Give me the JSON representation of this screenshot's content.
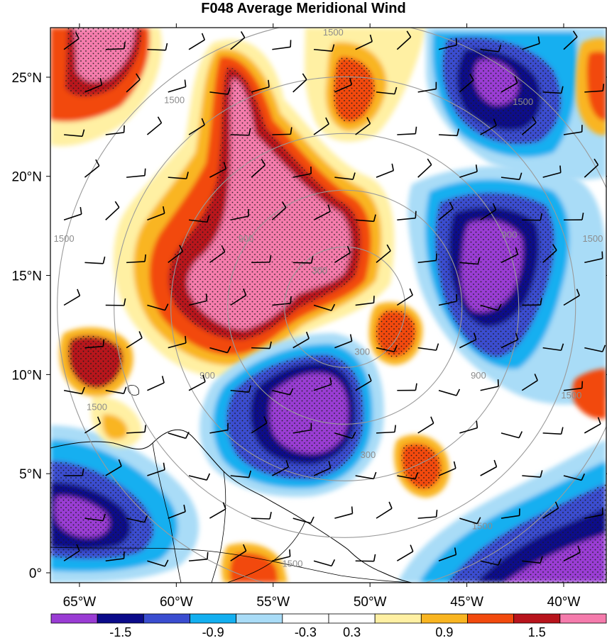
{
  "title": "F048 Average Meridional Wind",
  "map": {
    "lon_range": [
      -66.5,
      -37.8
    ],
    "lat_range": [
      -0.5,
      27.5
    ],
    "lat_ticks": [
      {
        "value": 0,
        "label": "0°"
      },
      {
        "value": 5,
        "label": "5°N"
      },
      {
        "value": 10,
        "label": "10°N"
      },
      {
        "value": 15,
        "label": "15°N"
      },
      {
        "value": 20,
        "label": "20°N"
      },
      {
        "value": 25,
        "label": "25°N"
      }
    ],
    "lon_ticks": [
      {
        "value": -65,
        "label": "65°W"
      },
      {
        "value": -60,
        "label": "60°W"
      },
      {
        "value": -55,
        "label": "55°W"
      },
      {
        "value": -50,
        "label": "50°W"
      },
      {
        "value": -45,
        "label": "45°W"
      },
      {
        "value": -40,
        "label": "40°W"
      }
    ],
    "range_rings": [
      {
        "label": "300",
        "label_lon": -52.6,
        "label_lat": 15.1
      },
      {
        "label": "300",
        "label_lon": -50.4,
        "label_lat": 11.0
      },
      {
        "label": "300",
        "label_lon": -50.1,
        "label_lat": 5.8
      },
      {
        "label": "900",
        "label_lon": -56.4,
        "label_lat": 16.7
      },
      {
        "label": "900",
        "label_lon": -42.8,
        "label_lat": 16.9
      },
      {
        "label": "900",
        "label_lon": -58.4,
        "label_lat": 9.8
      },
      {
        "label": "900",
        "label_lon": -44.4,
        "label_lat": 9.8
      },
      {
        "label": "1500",
        "label_lon": -51.9,
        "label_lat": 27.1
      },
      {
        "label": "1500",
        "label_lon": -60.1,
        "label_lat": 23.7
      },
      {
        "label": "1500",
        "label_lon": -42.1,
        "label_lat": 23.6
      },
      {
        "label": "1500",
        "label_lon": -65.8,
        "label_lat": 16.7
      },
      {
        "label": "1500",
        "label_lon": -38.5,
        "label_lat": 16.7
      },
      {
        "label": "1500",
        "label_lon": -64.1,
        "label_lat": 8.2
      },
      {
        "label": "1500",
        "label_lon": -39.6,
        "label_lat": 8.8
      },
      {
        "label": "1500",
        "label_lon": -44.2,
        "label_lat": 2.2
      },
      {
        "label": "1500",
        "label_lon": -54.0,
        "label_lat": 0.3
      }
    ],
    "colors": {
      "ring": "#9a9a9a",
      "coast": "#000000",
      "barb": "#000000",
      "stipple": "#1a1a1a"
    }
  },
  "colorbar": {
    "levels": [
      -1.8,
      -1.5,
      -1.2,
      -0.9,
      -0.6,
      -0.3,
      0.3,
      0.6,
      0.9,
      1.2,
      1.5
    ],
    "label_values": [
      "-1.5",
      "-0.9",
      "-0.3",
      "0.3",
      "0.9",
      "1.5"
    ],
    "colors": [
      "#9a3cd4",
      "#0b0b8a",
      "#3a4dd0",
      "#13aff0",
      "#a9dcf7",
      "#ffffff",
      "#ffffff",
      "#fff0a3",
      "#f9b521",
      "#f24a0d",
      "#b8141c",
      "#f57bac"
    ]
  }
}
